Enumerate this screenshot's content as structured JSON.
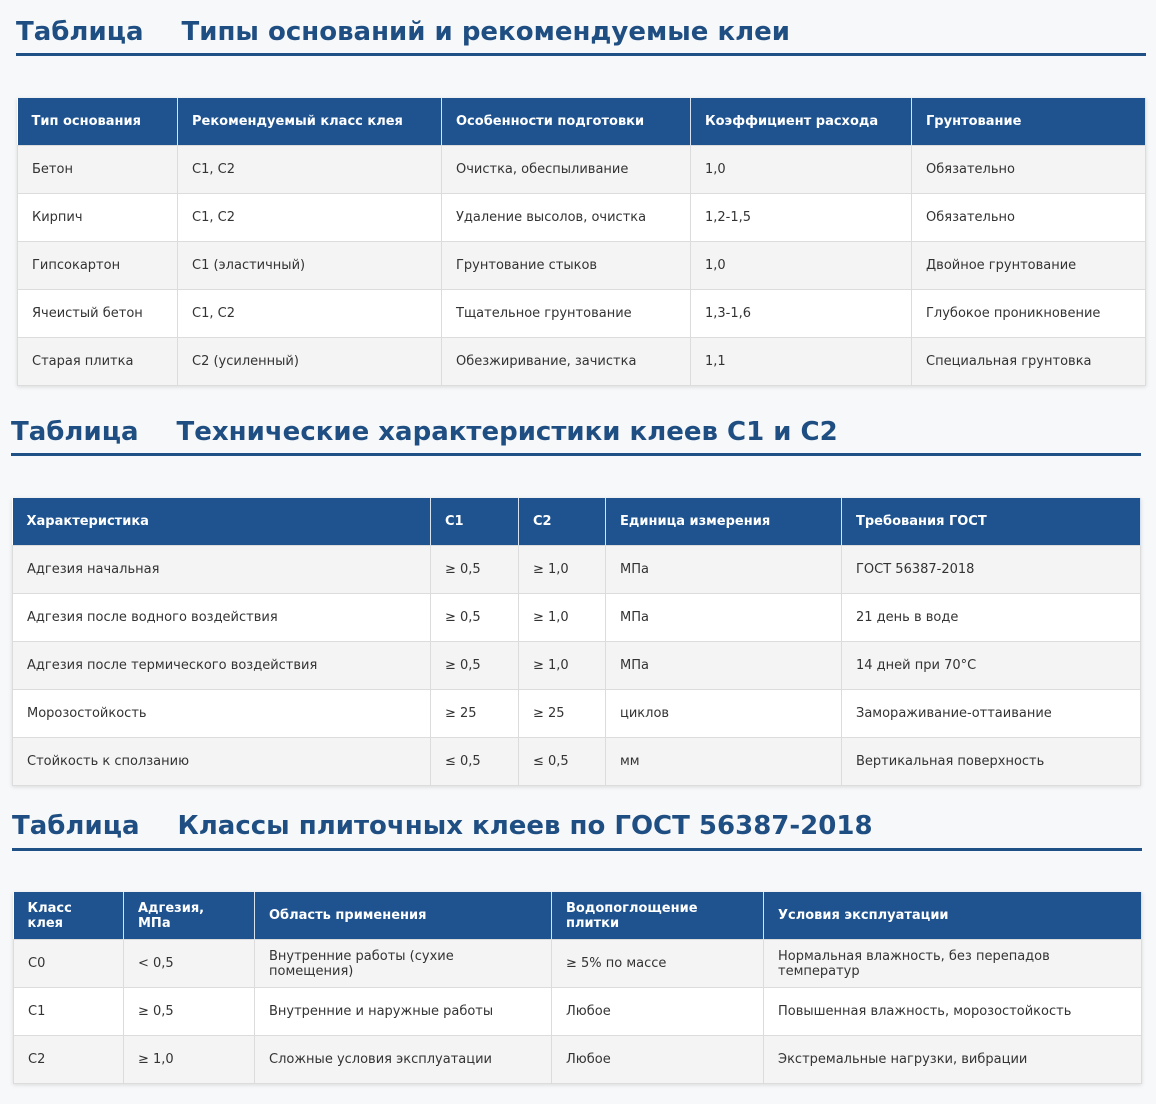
{
  "tables": [
    {
      "label": "Таблица",
      "title": "Типы оснований и рекомендуемые клеи",
      "headers": [
        "Тип основания",
        "Рекомендуемый класс клея",
        "Особенности подготовки",
        "Коэффициент расхода",
        "Грунтование"
      ],
      "rows": [
        [
          "Бетон",
          "C1, C2",
          "Очистка, обеспыливание",
          "1,0",
          "Обязательно"
        ],
        [
          "Кирпич",
          "C1, C2",
          "Удаление высолов, очистка",
          "1,2-1,5",
          "Обязательно"
        ],
        [
          "Гипсокартон",
          "C1 (эластичный)",
          "Грунтование стыков",
          "1,0",
          "Двойное грунтование"
        ],
        [
          "Ячеистый бетон",
          "C1, C2",
          "Тщательное грунтование",
          "1,3-1,6",
          "Глубокое проникновение"
        ],
        [
          "Старая плитка",
          "C2 (усиленный)",
          "Обезжиривание, зачистка",
          "1,1",
          "Специальная грунтовка"
        ]
      ]
    },
    {
      "label": "Таблица",
      "title": "Технические характеристики клеев C1 и C2",
      "headers": [
        "Характеристика",
        "C1",
        "C2",
        "Единица измерения",
        "Требования ГОСТ"
      ],
      "rows": [
        [
          "Адгезия начальная",
          "≥ 0,5",
          "≥ 1,0",
          "МПа",
          "ГОСТ 56387-2018"
        ],
        [
          "Адгезия после водного воздействия",
          "≥ 0,5",
          "≥ 1,0",
          "МПа",
          "21 день в воде"
        ],
        [
          "Адгезия после термического воздействия",
          "≥ 0,5",
          "≥ 1,0",
          "МПа",
          "14 дней при 70°C"
        ],
        [
          "Морозостойкость",
          "≥ 25",
          "≥ 25",
          "циклов",
          "Замораживание-оттаивание"
        ],
        [
          "Стойкость к сползанию",
          "≤ 0,5",
          "≤ 0,5",
          "мм",
          "Вертикальная поверхность"
        ]
      ]
    },
    {
      "label": "Таблица",
      "title": "Классы плиточных клеев по ГОСТ 56387-2018",
      "headers": [
        "Класс клея",
        "Адгезия, МПа",
        "Область применения",
        "Водопоглощение плитки",
        "Условия эксплуатации"
      ],
      "rows": [
        [
          "C0",
          "< 0,5",
          "Внутренние работы (сухие помещения)",
          "≥ 5% по массе",
          "Нормальная влажность, без перепадов температур"
        ],
        [
          "C1",
          "≥ 0,5",
          "Внутренние и наружные работы",
          "Любое",
          "Повышенная влажность, морозостойкость"
        ],
        [
          "C2",
          "≥ 1,0",
          "Сложные условия эксплуатации",
          "Любое",
          "Экстремальные нагрузки, вибрации"
        ]
      ]
    }
  ]
}
